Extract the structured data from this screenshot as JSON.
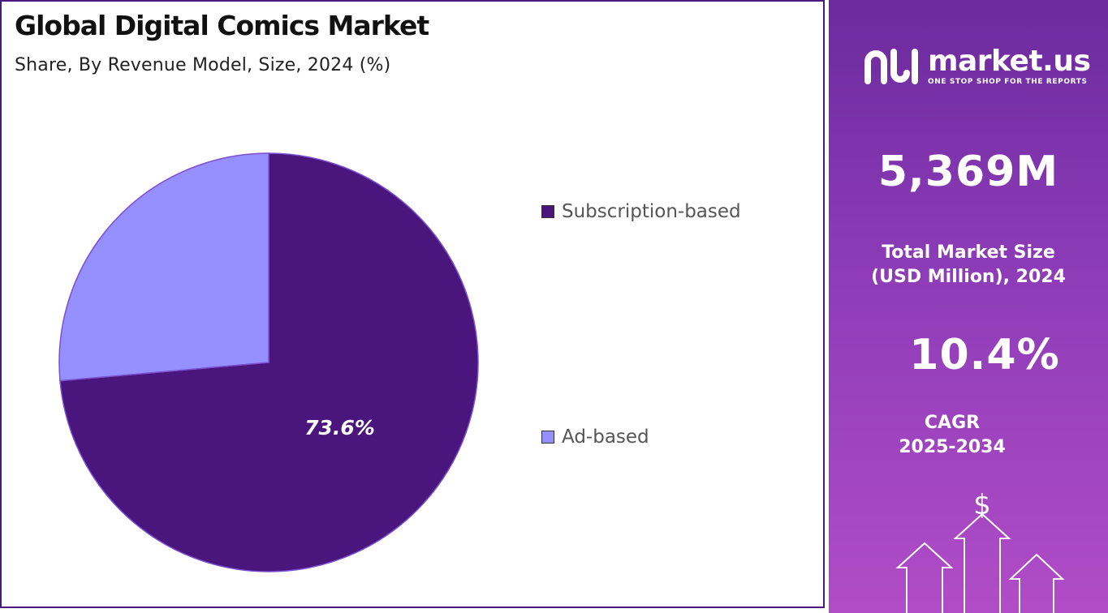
{
  "header": {
    "title": "Global Digital Comics Market",
    "subtitle": "Share, By Revenue Model, Size, 2024 (%)"
  },
  "chart_data": {
    "type": "pie",
    "slices": [
      {
        "label": "Subscription-based",
        "value": 73.6,
        "color": "#4a167e",
        "data_label": "73.6%"
      },
      {
        "label": "Ad-based",
        "value": 26.4,
        "color": "#9690fe",
        "data_label": ""
      }
    ],
    "legend_position": "right"
  },
  "sidebar": {
    "brand": "market.us",
    "tagline": "ONE STOP SHOP FOR THE REPORTS",
    "market_size_value": "5,369M",
    "market_size_label_line1": "Total Market Size",
    "market_size_label_line2": "(USD Million), 2024",
    "cagr_value": "10.4%",
    "cagr_label_line1": "CAGR",
    "cagr_label_line2": "2025-2034",
    "dollar_symbol": "$"
  },
  "colors": {
    "frame": "#4a1a7e",
    "panel_top": "#6c2a9e",
    "panel_bottom": "#b04cc6"
  },
  "icons": [
    "market-us-logo-icon",
    "dollar-icon",
    "growth-arrows-icon"
  ]
}
